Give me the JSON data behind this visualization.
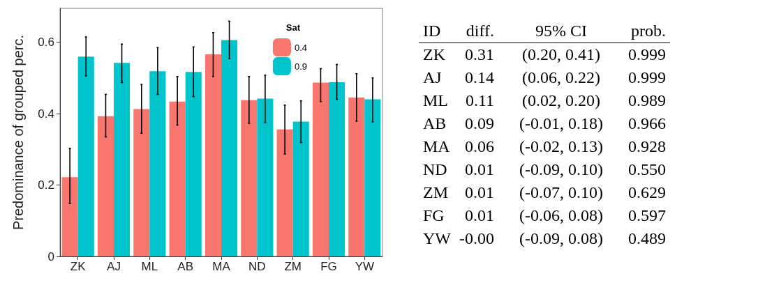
{
  "chart_data": [
    {
      "type": "bar",
      "ylabel": "Predominance of grouped perc.",
      "legend_title": "Sat",
      "categories": [
        "ZK",
        "AJ",
        "ML",
        "AB",
        "MA",
        "ND",
        "ZM",
        "FG",
        "YW"
      ],
      "ylim": [
        0,
        0.695
      ],
      "yticks": [
        0,
        0.2,
        0.4,
        0.6
      ],
      "grid": false,
      "legend": "top right",
      "series": [
        {
          "name": "0.4",
          "color": "#f8766d",
          "values": [
            0.222,
            0.393,
            0.413,
            0.434,
            0.566,
            0.438,
            0.356,
            0.487,
            0.445
          ],
          "errors": [
            [
              0.148,
              0.303
            ],
            [
              0.335,
              0.454
            ],
            [
              0.345,
              0.482
            ],
            [
              0.368,
              0.504
            ],
            [
              0.504,
              0.627
            ],
            [
              0.373,
              0.504
            ],
            [
              0.287,
              0.424
            ],
            [
              0.434,
              0.526
            ],
            [
              0.379,
              0.512
            ]
          ]
        },
        {
          "name": "0.9",
          "color": "#00c5cd",
          "values": [
            0.56,
            0.542,
            0.519,
            0.517,
            0.606,
            0.442,
            0.378,
            0.488,
            0.44
          ],
          "errors": [
            [
              0.506,
              0.615
            ],
            [
              0.487,
              0.595
            ],
            [
              0.454,
              0.585
            ],
            [
              0.448,
              0.587
            ],
            [
              0.554,
              0.659
            ],
            [
              0.375,
              0.508
            ],
            [
              0.319,
              0.436
            ],
            [
              0.44,
              0.538
            ],
            [
              0.377,
              0.5
            ]
          ]
        }
      ]
    },
    {
      "type": "other",
      "categories": [
        "ID",
        "diff.",
        "95% CI",
        "prob."
      ],
      "cell_labels": [
        [
          "ZK",
          "0.31",
          "(0.20, 0.41)",
          "0.999"
        ],
        [
          "AJ",
          "0.14",
          "(0.06, 0.22)",
          "0.999"
        ],
        [
          "ML",
          "0.11",
          "(0.02, 0.20)",
          "0.989"
        ],
        [
          "AB",
          "0.09",
          "(-0.01, 0.18)",
          "0.966"
        ],
        [
          "MA",
          "0.06",
          "(-0.02, 0.13)",
          "0.928"
        ],
        [
          "ND",
          "0.01",
          "(-0.09, 0.10)",
          "0.550"
        ],
        [
          "ZM",
          "0.01",
          "(-0.07, 0.10)",
          "0.629"
        ],
        [
          "FG",
          "0.01",
          "(-0.06, 0.08)",
          "0.597"
        ],
        [
          "YW",
          "-0.00",
          "(-0.09, 0.08)",
          "0.489"
        ]
      ]
    }
  ]
}
